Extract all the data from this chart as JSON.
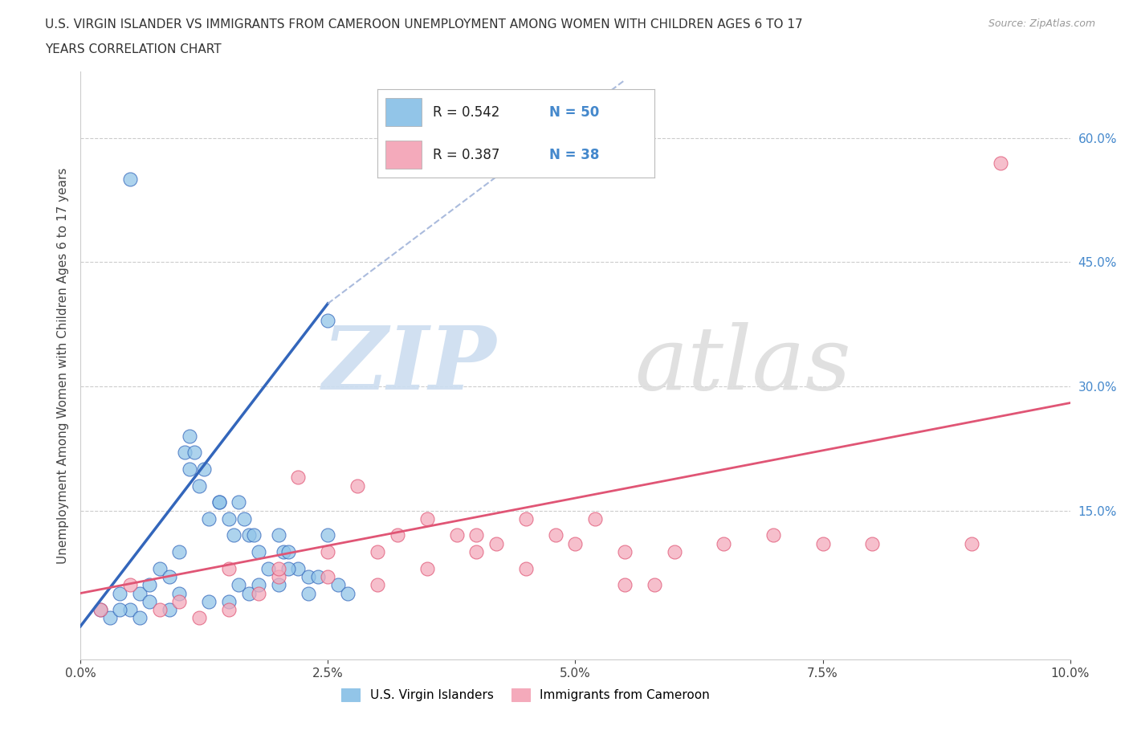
{
  "title_line1": "U.S. VIRGIN ISLANDER VS IMMIGRANTS FROM CAMEROON UNEMPLOYMENT AMONG WOMEN WITH CHILDREN AGES 6 TO 17",
  "title_line2": "YEARS CORRELATION CHART",
  "source": "Source: ZipAtlas.com",
  "ylabel": "Unemployment Among Women with Children Ages 6 to 17 years",
  "xlim": [
    0.0,
    10.0
  ],
  "ylim": [
    -3.0,
    68.0
  ],
  "xtick_labels": [
    "0.0%",
    "2.5%",
    "5.0%",
    "7.5%",
    "10.0%"
  ],
  "xtick_vals": [
    0.0,
    2.5,
    5.0,
    7.5,
    10.0
  ],
  "ytick_labels": [
    "15.0%",
    "30.0%",
    "45.0%",
    "60.0%"
  ],
  "ytick_vals": [
    15.0,
    30.0,
    45.0,
    60.0
  ],
  "R_blue": 0.542,
  "N_blue": 50,
  "R_pink": 0.387,
  "N_pink": 38,
  "blue_color": "#92C5E8",
  "pink_color": "#F4AABB",
  "blue_line_color": "#3366BB",
  "pink_line_color": "#E05575",
  "tick_color": "#4488CC",
  "blue_scatter_x": [
    0.4,
    0.5,
    0.6,
    0.7,
    0.8,
    0.9,
    1.0,
    1.05,
    1.1,
    1.15,
    1.2,
    1.25,
    1.3,
    1.4,
    1.5,
    1.55,
    1.6,
    1.65,
    1.7,
    1.75,
    1.8,
    1.9,
    2.0,
    2.05,
    2.1,
    2.2,
    2.3,
    2.4,
    2.5,
    2.6,
    2.7,
    0.2,
    0.3,
    0.5,
    0.7,
    1.0,
    1.3,
    1.5,
    1.7,
    2.0,
    2.3,
    0.6,
    0.9,
    1.1,
    1.4,
    1.6,
    1.8,
    2.1,
    2.5,
    0.4
  ],
  "blue_scatter_y": [
    5.0,
    55.0,
    5.0,
    6.0,
    8.0,
    7.0,
    10.0,
    22.0,
    20.0,
    22.0,
    18.0,
    20.0,
    14.0,
    16.0,
    14.0,
    12.0,
    16.0,
    14.0,
    12.0,
    12.0,
    10.0,
    8.0,
    12.0,
    10.0,
    10.0,
    8.0,
    7.0,
    7.0,
    38.0,
    6.0,
    5.0,
    3.0,
    2.0,
    3.0,
    4.0,
    5.0,
    4.0,
    4.0,
    5.0,
    6.0,
    5.0,
    2.0,
    3.0,
    24.0,
    16.0,
    6.0,
    6.0,
    8.0,
    12.0,
    3.0
  ],
  "pink_scatter_x": [
    0.2,
    0.5,
    0.8,
    1.0,
    1.2,
    1.5,
    1.8,
    2.0,
    2.2,
    2.5,
    2.8,
    3.0,
    3.2,
    3.5,
    3.8,
    4.0,
    4.2,
    4.5,
    4.8,
    5.0,
    5.2,
    5.5,
    5.8,
    6.0,
    6.5,
    7.0,
    7.5,
    8.0,
    9.0,
    1.5,
    2.0,
    2.5,
    3.0,
    3.5,
    4.0,
    4.5,
    5.5,
    9.3
  ],
  "pink_scatter_y": [
    3.0,
    6.0,
    3.0,
    4.0,
    2.0,
    8.0,
    5.0,
    7.0,
    19.0,
    10.0,
    18.0,
    10.0,
    12.0,
    14.0,
    12.0,
    12.0,
    11.0,
    14.0,
    12.0,
    11.0,
    14.0,
    10.0,
    6.0,
    10.0,
    11.0,
    12.0,
    11.0,
    11.0,
    11.0,
    3.0,
    8.0,
    7.0,
    6.0,
    8.0,
    10.0,
    8.0,
    6.0,
    57.0
  ],
  "blue_line_x0": 0.0,
  "blue_line_y0": 1.0,
  "blue_line_x1": 2.5,
  "blue_line_y1": 40.0,
  "pink_line_x0": 0.0,
  "pink_line_y0": 5.0,
  "pink_line_x1": 10.0,
  "pink_line_y1": 28.0
}
